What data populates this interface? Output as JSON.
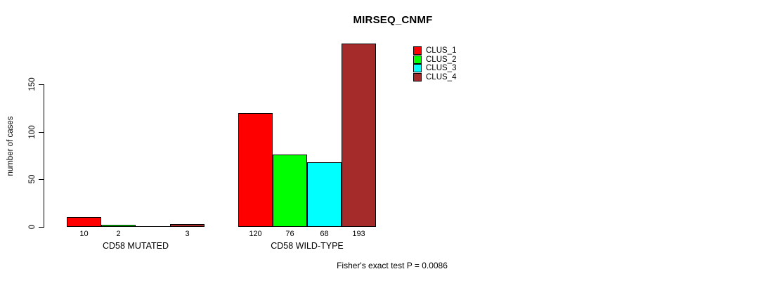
{
  "chart_data": {
    "type": "bar",
    "title": "MIRSEQ_CNMF",
    "ylabel": "number of cases",
    "xlabel": "",
    "categories": [
      "CD58 MUTATED",
      "CD58 WILD-TYPE"
    ],
    "series": [
      {
        "name": "CLUS_1",
        "color": "#ff0000",
        "values": [
          10,
          120
        ]
      },
      {
        "name": "CLUS_2",
        "color": "#00ff00",
        "values": [
          2,
          76
        ]
      },
      {
        "name": "CLUS_3",
        "color": "#00ffff",
        "values": [
          0,
          68
        ]
      },
      {
        "name": "CLUS_4",
        "color": "#a52a2a",
        "values": [
          3,
          193
        ]
      }
    ],
    "bar_value_labels": [
      [
        "10",
        "2",
        "",
        "3"
      ],
      [
        "120",
        "76",
        "68",
        "193"
      ]
    ],
    "yticks": [
      0,
      50,
      100,
      150
    ],
    "ylim": [
      0,
      205
    ],
    "grid": false,
    "legend": {
      "position": "inside-top-right",
      "entries": [
        "CLUS_1",
        "CLUS_2",
        "CLUS_3",
        "CLUS_4"
      ]
    },
    "annotation": "Fisher's exact test P = 0.0086"
  },
  "colors": {
    "background": "#ffffff",
    "axis": "#000000",
    "text": "#000000"
  }
}
